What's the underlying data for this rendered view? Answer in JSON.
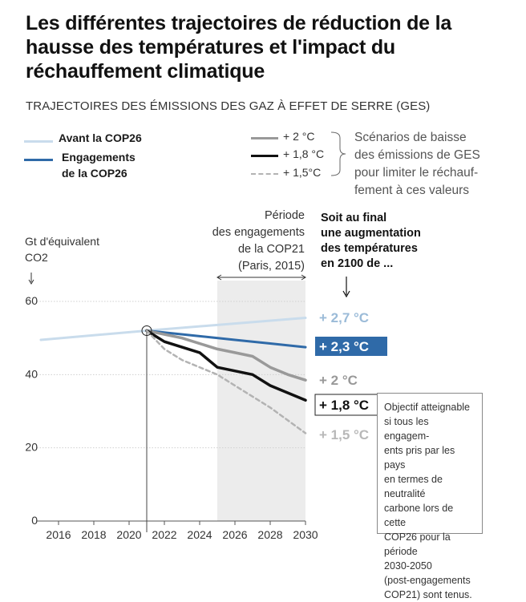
{
  "title": "Les différentes trajectoires de réduction de la hausse des températures et l'impact du réchauffement climatique",
  "subtitle": "TRAJECTOIRES DES ÉMISSIONS DES GAZ À EFFET DE SERRE (GES)",
  "legend_left": {
    "avant": "Avant la COP26",
    "engagement_line1": "Engagements",
    "engagement_line2": "de la COP26"
  },
  "legend_right": {
    "s20": "+ 2 °C",
    "s18": "+ 1,8 °C",
    "s15": "+ 1,5°C",
    "note": [
      "Scénarios de baisse",
      "des émissions de GES",
      "pour limiter le réchauf-",
      "fement à ces valeurs"
    ]
  },
  "ylabel": [
    "Gt d'équivalent",
    "CO2"
  ],
  "periode": [
    "Période",
    "des engagements",
    "de la COP21",
    "(Paris, 2015)"
  ],
  "final": [
    "Soit au final",
    "une augmentation",
    "des températures",
    "en 2100 de ..."
  ],
  "objectif": [
    "Objectif atteignable",
    "si tous les engagem-",
    "ents pris par les pays",
    "en termes de neutralité",
    "carbone lors de cette",
    "COP26 pour la période",
    "2030-2050",
    "(post-engagements",
    "COP21) sont tenus."
  ],
  "colors": {
    "avant": "#c9dcec",
    "engagement": "#2f6aa8",
    "s20": "#999999",
    "s18": "#111111",
    "s15": "#b3b3b3",
    "period_bg": "#ececec",
    "grid": "#cfcfcf"
  },
  "chart_data": {
    "type": "line",
    "xlabel": "",
    "ylabel": "Gt d'équivalent CO2",
    "xlim": [
      2015,
      2030
    ],
    "ylim": [
      0,
      60
    ],
    "xticks": [
      2016,
      2018,
      2020,
      2022,
      2024,
      2026,
      2028,
      2030
    ],
    "xtick_labels": [
      "2016",
      "2018",
      "2020",
      "2022",
      "2024",
      "2026",
      "2028",
      "2030"
    ],
    "yticks": [
      0,
      20,
      40,
      60
    ],
    "ytick_labels": [
      "0",
      "20",
      "40",
      "60"
    ],
    "grid": "horizontal dotted",
    "reference_year": 2021,
    "period_range": [
      2025,
      2030
    ],
    "series": [
      {
        "key": "avant",
        "name": "Avant la COP26",
        "end_label": "+ 2,7 °C",
        "x": [
          2015,
          2021,
          2030
        ],
        "y": [
          49.5,
          52,
          55.5
        ]
      },
      {
        "key": "engagement",
        "name": "Engagements de la COP26",
        "end_label": "+ 2,3 °C",
        "x": [
          2021,
          2024,
          2026,
          2028,
          2030
        ],
        "y": [
          52,
          50.5,
          49.5,
          48.5,
          47.5
        ]
      },
      {
        "key": "s20",
        "name": "+ 2 °C",
        "end_label": "+ 2 °C",
        "x": [
          2021,
          2023,
          2025,
          2026,
          2027,
          2028,
          2029,
          2030
        ],
        "y": [
          52,
          50,
          47,
          46,
          45,
          42,
          40,
          38.5
        ]
      },
      {
        "key": "s18",
        "name": "+ 1,8 °C",
        "end_label": "+ 1,8 °C",
        "x": [
          2021,
          2022,
          2024,
          2025,
          2027,
          2028,
          2030
        ],
        "y": [
          52,
          49,
          46,
          42,
          40,
          37,
          33
        ]
      },
      {
        "key": "s15",
        "name": "+ 1,5°C",
        "end_label": "+ 1,5 °C",
        "x": [
          2021,
          2022,
          2023,
          2025,
          2027,
          2028,
          2030
        ],
        "y": [
          52,
          47,
          44,
          40,
          34,
          31,
          24
        ]
      }
    ]
  }
}
